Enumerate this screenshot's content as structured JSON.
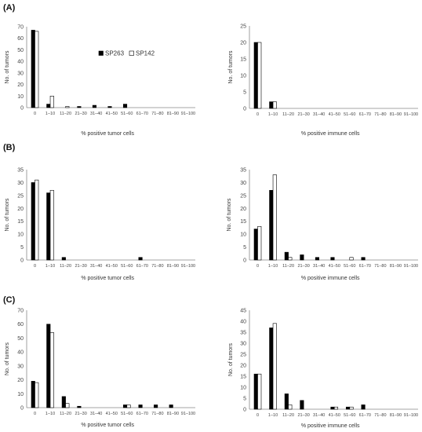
{
  "legend": {
    "series": [
      {
        "name": "SP263",
        "color": "#000000"
      },
      {
        "name": "SP142",
        "color": "#ffffff"
      }
    ]
  },
  "chart_data": [
    {
      "panel": "(A)",
      "type": "bar",
      "categories": [
        "0",
        "1–10",
        "11–20",
        "21–30",
        "31–40",
        "41–50",
        "51–60",
        "61–70",
        "71–80",
        "81–90",
        "91–100"
      ],
      "series": [
        {
          "name": "SP263",
          "values": [
            67,
            3,
            0,
            1,
            2,
            1,
            3,
            0,
            0,
            0,
            0
          ]
        },
        {
          "name": "SP142",
          "values": [
            66,
            10,
            1,
            0,
            0,
            0,
            0,
            0,
            0,
            0,
            0
          ]
        }
      ],
      "xlabel": "% positive tumor cells",
      "ylabel": "No. of tumors",
      "ylim": [
        0,
        70
      ],
      "yticks": [
        0,
        10,
        20,
        30,
        40,
        50,
        60,
        70
      ]
    },
    {
      "panel": "",
      "type": "bar",
      "categories": [
        "0",
        "1–10",
        "11–20",
        "21–30",
        "31–40",
        "41–50",
        "51–60",
        "61–70",
        "71–80",
        "81–90",
        "91–100"
      ],
      "series": [
        {
          "name": "SP263",
          "values": [
            20,
            2,
            0,
            0,
            0,
            0,
            0,
            0,
            0,
            0,
            0
          ]
        },
        {
          "name": "SP142",
          "values": [
            20,
            2,
            0,
            0,
            0,
            0,
            0,
            0,
            0,
            0,
            0
          ]
        }
      ],
      "xlabel": "% positive immune cells",
      "ylabel": "No. of tumors",
      "ylim": [
        0,
        25
      ],
      "yticks": [
        0,
        5,
        10,
        15,
        20,
        25
      ]
    },
    {
      "panel": "(B)",
      "type": "bar",
      "categories": [
        "0",
        "1–10",
        "11–20",
        "21–30",
        "31–40",
        "41–50",
        "51–60",
        "61–70",
        "71–80",
        "81–90",
        "91–100"
      ],
      "series": [
        {
          "name": "SP263",
          "values": [
            30,
            26,
            1,
            0,
            0,
            0,
            0,
            1,
            0,
            0,
            0
          ]
        },
        {
          "name": "SP142",
          "values": [
            31,
            27,
            0,
            0,
            0,
            0,
            0,
            0,
            0,
            0,
            0
          ]
        }
      ],
      "xlabel": "% positive tumor cells",
      "ylabel": "No. of tumors",
      "ylim": [
        0,
        35
      ],
      "yticks": [
        0,
        5,
        10,
        15,
        20,
        25,
        30,
        35
      ]
    },
    {
      "panel": "",
      "type": "bar",
      "categories": [
        "0",
        "1–10",
        "11–20",
        "21–30",
        "31–40",
        "41–50",
        "51–60",
        "61–70",
        "71–80",
        "81–90",
        "91–100"
      ],
      "series": [
        {
          "name": "SP263",
          "values": [
            12,
            27,
            3,
            2,
            1,
            1,
            0,
            1,
            0,
            0,
            0
          ]
        },
        {
          "name": "SP142",
          "values": [
            13,
            33,
            1,
            0,
            0,
            0,
            1,
            0,
            0,
            0,
            0
          ]
        }
      ],
      "xlabel": "% positive immune cells",
      "ylabel": "No. of tumors",
      "ylim": [
        0,
        35
      ],
      "yticks": [
        0,
        5,
        10,
        15,
        20,
        25,
        30,
        35
      ]
    },
    {
      "panel": "(C)",
      "type": "bar",
      "categories": [
        "0",
        "1–10",
        "11–20",
        "21–30",
        "31–40",
        "41–50",
        "51–60",
        "61–70",
        "71–80",
        "81–90",
        "91–100"
      ],
      "series": [
        {
          "name": "SP263",
          "values": [
            19,
            60,
            8,
            1,
            0,
            0,
            2,
            2,
            2,
            2,
            0
          ]
        },
        {
          "name": "SP142",
          "values": [
            18,
            54,
            3,
            0,
            0,
            0,
            2,
            0,
            0,
            0,
            0
          ]
        }
      ],
      "xlabel": "% positive tumor cells",
      "ylabel": "No. of tumors",
      "ylim": [
        0,
        70
      ],
      "yticks": [
        0,
        10,
        20,
        30,
        40,
        50,
        60,
        70
      ]
    },
    {
      "panel": "",
      "type": "bar",
      "categories": [
        "0",
        "1–10",
        "11–20",
        "21–30",
        "31–40",
        "41–50",
        "51–60",
        "61–70",
        "71–80",
        "81–90",
        "91–100"
      ],
      "series": [
        {
          "name": "SP263",
          "values": [
            16,
            37,
            7,
            4,
            0,
            1,
            1,
            2,
            0,
            0,
            0
          ]
        },
        {
          "name": "SP142",
          "values": [
            16,
            39,
            2,
            0,
            0,
            1,
            1,
            0,
            0,
            0,
            0
          ]
        }
      ],
      "xlabel": "% positive immune cells",
      "ylabel": "No. of tumors",
      "ylim": [
        0,
        45
      ],
      "yticks": [
        0,
        5,
        10,
        15,
        20,
        25,
        30,
        35,
        40,
        45
      ]
    }
  ]
}
